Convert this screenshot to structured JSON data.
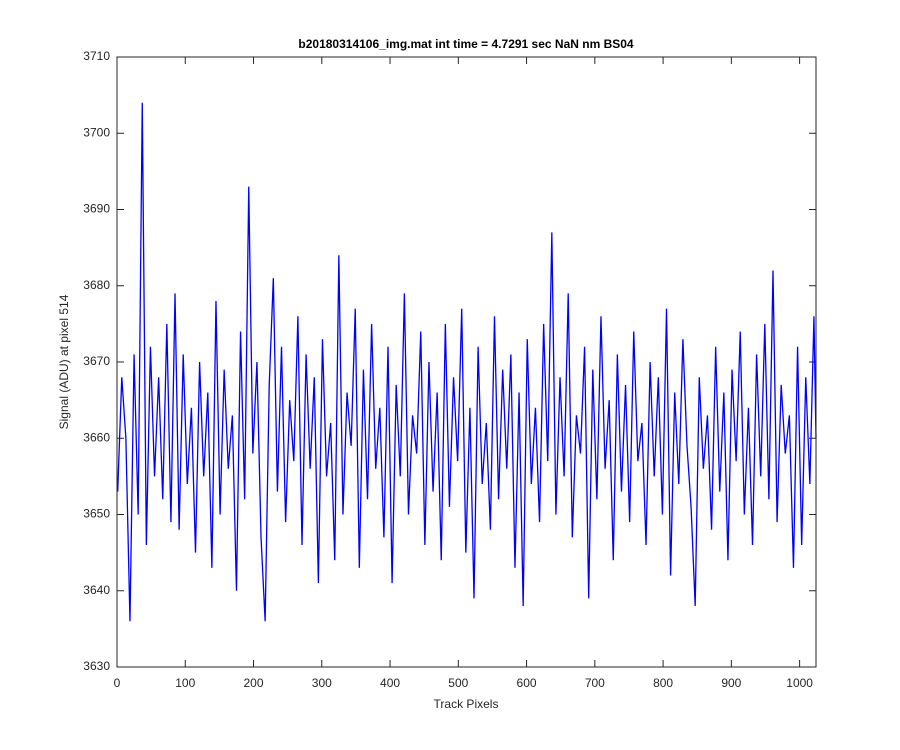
{
  "chart_data": {
    "type": "line",
    "title": "b20180314106_img.mat int time = 4.7291 sec  NaN nm BS04",
    "x_label": "Track Pixels",
    "y_label": "Signal (ADU) at pixel 514",
    "xlim": [
      0,
      1024
    ],
    "ylim": [
      3630,
      3710
    ],
    "xticks": [
      0,
      100,
      200,
      300,
      400,
      500,
      600,
      700,
      800,
      900,
      1000
    ],
    "yticks": [
      3630,
      3640,
      3650,
      3660,
      3670,
      3680,
      3690,
      3700,
      3710
    ],
    "series": [
      {
        "color": "#0000ff",
        "x": [
          1,
          7,
          13,
          19,
          25,
          31,
          37,
          43,
          49,
          55,
          61,
          67,
          73,
          79,
          85,
          91,
          97,
          103,
          109,
          115,
          121,
          127,
          133,
          139,
          145,
          151,
          157,
          163,
          169,
          175,
          181,
          187,
          193,
          199,
          205,
          211,
          217,
          223,
          229,
          235,
          241,
          247,
          253,
          259,
          265,
          271,
          277,
          283,
          289,
          295,
          301,
          307,
          313,
          319,
          325,
          331,
          337,
          343,
          349,
          355,
          361,
          367,
          373,
          379,
          385,
          391,
          397,
          403,
          409,
          415,
          421,
          427,
          433,
          439,
          445,
          451,
          457,
          463,
          469,
          475,
          481,
          487,
          493,
          499,
          505,
          511,
          517,
          523,
          529,
          535,
          541,
          547,
          553,
          559,
          565,
          571,
          577,
          583,
          589,
          595,
          601,
          607,
          613,
          619,
          625,
          631,
          637,
          643,
          649,
          655,
          661,
          667,
          673,
          679,
          685,
          691,
          697,
          703,
          709,
          715,
          721,
          727,
          733,
          739,
          745,
          751,
          757,
          763,
          769,
          775,
          781,
          787,
          793,
          799,
          805,
          811,
          817,
          823,
          829,
          835,
          841,
          847,
          853,
          859,
          865,
          871,
          877,
          883,
          889,
          895,
          901,
          907,
          913,
          919,
          925,
          931,
          937,
          943,
          949,
          955,
          961,
          967,
          973,
          979,
          985,
          991,
          997,
          1003,
          1009,
          1015,
          1021,
          1024
        ],
        "values": [
          3653,
          3668,
          3660,
          3636,
          3671,
          3650,
          3704,
          3646,
          3672,
          3655,
          3668,
          3652,
          3675,
          3649,
          3679,
          3648,
          3671,
          3654,
          3664,
          3645,
          3670,
          3655,
          3666,
          3643,
          3678,
          3650,
          3669,
          3656,
          3663,
          3640,
          3674,
          3652,
          3693,
          3658,
          3670,
          3647,
          3636,
          3667,
          3681,
          3653,
          3672,
          3649,
          3665,
          3657,
          3676,
          3646,
          3671,
          3656,
          3668,
          3641,
          3673,
          3655,
          3662,
          3644,
          3684,
          3650,
          3666,
          3659,
          3677,
          3643,
          3669,
          3652,
          3675,
          3656,
          3664,
          3647,
          3672,
          3641,
          3667,
          3655,
          3679,
          3650,
          3663,
          3658,
          3674,
          3646,
          3670,
          3653,
          3666,
          3644,
          3675,
          3651,
          3668,
          3657,
          3677,
          3645,
          3664,
          3639,
          3672,
          3654,
          3662,
          3648,
          3676,
          3652,
          3669,
          3656,
          3671,
          3643,
          3666,
          3638,
          3673,
          3654,
          3664,
          3649,
          3675,
          3657,
          3687,
          3650,
          3668,
          3655,
          3679,
          3647,
          3663,
          3658,
          3672,
          3639,
          3669,
          3652,
          3676,
          3656,
          3665,
          3644,
          3671,
          3653,
          3667,
          3649,
          3674,
          3657,
          3662,
          3646,
          3670,
          3655,
          3668,
          3650,
          3677,
          3642,
          3666,
          3654,
          3673,
          3659,
          3651,
          3638,
          3668,
          3656,
          3663,
          3648,
          3672,
          3653,
          3666,
          3644,
          3669,
          3657,
          3674,
          3650,
          3664,
          3646,
          3671,
          3655,
          3675,
          3652,
          3682,
          3649,
          3667,
          3658,
          3663,
          3643,
          3672,
          3646,
          3668,
          3654,
          3676,
          3660
        ]
      }
    ]
  }
}
